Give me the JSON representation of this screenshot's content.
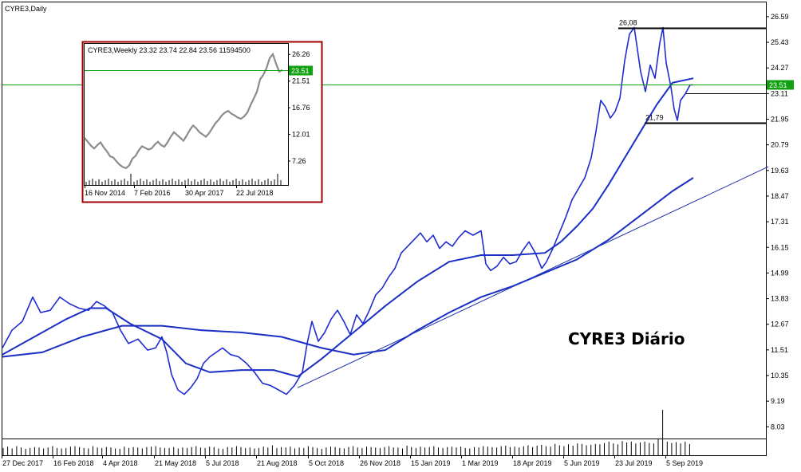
{
  "chart_data": [
    {
      "type": "line",
      "title": "CYRE3,Daily",
      "annotation": "CYRE3 Diário",
      "current_price": "23.51",
      "y_ticks": [
        "26.59",
        "25.43",
        "24.27",
        "23.11",
        "21.95",
        "20.79",
        "19.63",
        "18.47",
        "17.31",
        "16.15",
        "14.99",
        "13.83",
        "12.67",
        "11.51",
        "10.35",
        "9.19",
        "8.03"
      ],
      "x_ticks": [
        "27 Dec 2017",
        "16 Feb 2018",
        "4 Apr 2018",
        "21 May 2018",
        "5 Jul 2018",
        "21 Aug 2018",
        "5 Oct 2018",
        "26 Nov 2018",
        "15 Jan 2019",
        "1 Mar 2019",
        "18 Apr 2019",
        "5 Jun 2019",
        "23 Jul 2019",
        "5 Sep 2019"
      ],
      "levels": [
        {
          "label": "26,08",
          "value": 26.08
        },
        {
          "label": "21,79",
          "value": 21.79
        },
        {
          "label": "",
          "value": 23.11
        }
      ],
      "ylim": [
        7.5,
        27.2
      ],
      "price": [
        [
          0,
          11.6
        ],
        [
          12,
          12.4
        ],
        [
          25,
          12.8
        ],
        [
          38,
          13.9
        ],
        [
          48,
          13.2
        ],
        [
          60,
          13.3
        ],
        [
          72,
          13.9
        ],
        [
          84,
          13.6
        ],
        [
          96,
          13.4
        ],
        [
          108,
          13.3
        ],
        [
          118,
          13.7
        ],
        [
          128,
          13.5
        ],
        [
          138,
          13.2
        ],
        [
          148,
          12.4
        ],
        [
          158,
          11.8
        ],
        [
          170,
          12.0
        ],
        [
          182,
          11.5
        ],
        [
          192,
          11.6
        ],
        [
          200,
          12.1
        ],
        [
          206,
          11.4
        ],
        [
          212,
          10.4
        ],
        [
          220,
          9.7
        ],
        [
          228,
          9.5
        ],
        [
          236,
          9.8
        ],
        [
          244,
          10.2
        ],
        [
          252,
          10.9
        ],
        [
          260,
          11.2
        ],
        [
          268,
          11.4
        ],
        [
          276,
          11.6
        ],
        [
          286,
          11.3
        ],
        [
          296,
          11.2
        ],
        [
          306,
          10.9
        ],
        [
          316,
          10.5
        ],
        [
          326,
          10.0
        ],
        [
          336,
          9.9
        ],
        [
          346,
          9.7
        ],
        [
          356,
          9.5
        ],
        [
          366,
          9.9
        ],
        [
          376,
          10.5
        ],
        [
          382,
          11.8
        ],
        [
          388,
          12.8
        ],
        [
          396,
          11.9
        ],
        [
          404,
          12.3
        ],
        [
          412,
          12.9
        ],
        [
          420,
          13.3
        ],
        [
          428,
          12.8
        ],
        [
          436,
          12.2
        ],
        [
          444,
          13.1
        ],
        [
          452,
          12.7
        ],
        [
          460,
          13.3
        ],
        [
          468,
          14.0
        ],
        [
          476,
          14.3
        ],
        [
          484,
          14.8
        ],
        [
          492,
          15.2
        ],
        [
          500,
          15.9
        ],
        [
          508,
          16.2
        ],
        [
          516,
          16.5
        ],
        [
          524,
          16.8
        ],
        [
          532,
          16.4
        ],
        [
          540,
          16.7
        ],
        [
          548,
          16.1
        ],
        [
          556,
          16.4
        ],
        [
          564,
          16.2
        ],
        [
          572,
          16.6
        ],
        [
          580,
          16.9
        ],
        [
          590,
          16.7
        ],
        [
          600,
          16.9
        ],
        [
          606,
          15.4
        ],
        [
          612,
          15.1
        ],
        [
          620,
          15.3
        ],
        [
          628,
          15.7
        ],
        [
          636,
          15.4
        ],
        [
          644,
          15.5
        ],
        [
          652,
          16.0
        ],
        [
          660,
          16.4
        ],
        [
          668,
          15.9
        ],
        [
          676,
          15.2
        ],
        [
          682,
          15.5
        ],
        [
          690,
          16.1
        ],
        [
          698,
          16.8
        ],
        [
          706,
          17.5
        ],
        [
          714,
          18.3
        ],
        [
          722,
          18.8
        ],
        [
          730,
          19.3
        ],
        [
          738,
          20.2
        ],
        [
          744,
          21.4
        ],
        [
          750,
          22.8
        ],
        [
          756,
          22.5
        ],
        [
          762,
          22.0
        ],
        [
          768,
          22.3
        ],
        [
          774,
          22.9
        ],
        [
          780,
          24.6
        ],
        [
          786,
          25.8
        ],
        [
          792,
          26.1
        ],
        [
          796,
          25.1
        ],
        [
          800,
          24.1
        ],
        [
          806,
          23.2
        ],
        [
          812,
          24.4
        ],
        [
          818,
          23.8
        ],
        [
          824,
          25.4
        ],
        [
          828,
          26.1
        ],
        [
          832,
          24.5
        ],
        [
          838,
          23.4
        ],
        [
          842,
          22.4
        ],
        [
          846,
          21.9
        ],
        [
          850,
          22.8
        ],
        [
          856,
          23.1
        ],
        [
          862,
          23.5
        ],
        [
          866,
          23.5
        ]
      ],
      "ma_fast": [
        [
          0,
          11.3
        ],
        [
          40,
          12.1
        ],
        [
          80,
          12.9
        ],
        [
          110,
          13.4
        ],
        [
          130,
          13.4
        ],
        [
          160,
          12.7
        ],
        [
          200,
          12.0
        ],
        [
          230,
          10.9
        ],
        [
          260,
          10.5
        ],
        [
          300,
          10.6
        ],
        [
          340,
          10.6
        ],
        [
          370,
          10.3
        ],
        [
          400,
          11.1
        ],
        [
          440,
          12.3
        ],
        [
          480,
          13.5
        ],
        [
          520,
          14.6
        ],
        [
          560,
          15.5
        ],
        [
          600,
          15.8
        ],
        [
          640,
          15.8
        ],
        [
          680,
          15.9
        ],
        [
          700,
          16.4
        ],
        [
          720,
          17.1
        ],
        [
          740,
          17.9
        ],
        [
          760,
          19.0
        ],
        [
          780,
          20.2
        ],
        [
          800,
          21.4
        ],
        [
          820,
          22.6
        ],
        [
          840,
          23.6
        ],
        [
          866,
          23.8
        ]
      ],
      "ma_slow": [
        [
          0,
          11.2
        ],
        [
          50,
          11.4
        ],
        [
          100,
          12.1
        ],
        [
          150,
          12.6
        ],
        [
          200,
          12.6
        ],
        [
          250,
          12.4
        ],
        [
          300,
          12.3
        ],
        [
          350,
          12.1
        ],
        [
          400,
          11.6
        ],
        [
          440,
          11.3
        ],
        [
          480,
          11.5
        ],
        [
          520,
          12.4
        ],
        [
          560,
          13.2
        ],
        [
          600,
          13.9
        ],
        [
          640,
          14.4
        ],
        [
          680,
          15.0
        ],
        [
          720,
          15.6
        ],
        [
          760,
          16.5
        ],
        [
          800,
          17.6
        ],
        [
          840,
          18.7
        ],
        [
          866,
          19.3
        ]
      ],
      "trendline": [
        [
          370,
          9.8
        ],
        [
          960,
          19.8
        ]
      ],
      "volume": [
        0.16,
        0.19,
        0.15,
        0.2,
        0.17,
        0.14,
        0.16,
        0.18,
        0.17,
        0.15,
        0.17,
        0.2,
        0.16,
        0.15,
        0.16,
        0.19,
        0.2,
        0.18,
        0.16,
        0.15,
        0.2,
        0.17,
        0.16,
        0.18,
        0.17,
        0.15,
        0.14,
        0.19,
        0.16,
        0.18,
        0.17,
        0.15,
        0.18,
        0.19,
        0.2,
        0.17,
        0.16,
        0.16,
        0.18,
        0.15,
        0.17,
        0.16,
        0.18,
        0.2,
        0.17,
        0.16,
        0.19,
        0.18,
        0.15,
        0.14,
        0.18,
        0.17,
        0.2,
        0.18,
        0.16,
        0.17,
        0.15,
        0.16,
        0.19,
        0.17,
        0.22,
        0.16,
        0.18,
        0.17,
        0.19,
        0.15,
        0.17,
        0.16,
        0.2,
        0.18,
        0.16,
        0.14,
        0.17,
        0.19,
        0.18,
        0.16,
        0.15,
        0.18,
        0.2,
        0.17,
        0.16,
        0.19,
        0.18,
        0.17,
        0.16,
        0.18,
        0.2,
        0.17,
        0.17,
        0.15,
        0.21,
        0.18,
        0.16,
        0.19,
        0.17,
        0.18,
        0.2,
        0.17,
        0.16,
        0.18,
        0.19,
        0.17,
        0.19,
        0.16,
        0.15,
        0.18,
        0.17,
        0.2,
        0.19,
        0.18,
        0.17,
        0.2,
        0.21,
        0.18,
        0.19,
        0.17,
        0.2,
        0.22,
        0.18,
        0.21,
        0.23,
        0.2,
        0.19,
        0.25,
        0.22,
        0.2,
        0.24,
        0.21,
        0.26,
        0.25,
        0.22,
        0.23,
        0.25,
        0.24,
        0.27,
        0.3,
        0.26,
        0.24,
        0.31,
        0.28,
        0.3,
        0.26,
        0.28,
        0.3,
        0.27,
        0.26,
        0.35,
        1.0,
        0.3,
        0.27,
        0.29,
        0.26,
        0.3,
        0.25
      ],
      "inset": {
        "title": "CYRE3,Weekly  23.32 23.74 22.84 23.56  11594500",
        "current_price": "23.51",
        "y_ticks": [
          "26.26",
          "21.51",
          "16.76",
          "12.01",
          "7.26"
        ],
        "x_ticks": [
          "16 Nov 2014",
          "7 Feb 2016",
          "30 Apr 2017",
          "22 Jul 2018"
        ],
        "ylim": [
          3.0,
          28.0
        ],
        "price": [
          [
            0,
            11.4
          ],
          [
            4,
            10.7
          ],
          [
            8,
            10.0
          ],
          [
            12,
            9.5
          ],
          [
            16,
            10.1
          ],
          [
            20,
            10.6
          ],
          [
            24,
            9.7
          ],
          [
            28,
            9.0
          ],
          [
            32,
            8.1
          ],
          [
            36,
            7.9
          ],
          [
            40,
            7.2
          ],
          [
            44,
            6.6
          ],
          [
            48,
            6.2
          ],
          [
            52,
            6.0
          ],
          [
            56,
            6.5
          ],
          [
            60,
            7.7
          ],
          [
            64,
            8.2
          ],
          [
            68,
            9.2
          ],
          [
            72,
            9.9
          ],
          [
            76,
            9.6
          ],
          [
            80,
            9.3
          ],
          [
            84,
            9.5
          ],
          [
            88,
            10.2
          ],
          [
            92,
            10.7
          ],
          [
            96,
            10.1
          ],
          [
            100,
            9.8
          ],
          [
            104,
            10.6
          ],
          [
            108,
            11.6
          ],
          [
            112,
            12.4
          ],
          [
            116,
            11.9
          ],
          [
            120,
            11.4
          ],
          [
            124,
            10.9
          ],
          [
            128,
            11.8
          ],
          [
            132,
            12.8
          ],
          [
            136,
            13.6
          ],
          [
            140,
            13.1
          ],
          [
            144,
            12.4
          ],
          [
            148,
            12.0
          ],
          [
            152,
            11.6
          ],
          [
            156,
            12.2
          ],
          [
            160,
            13.1
          ],
          [
            164,
            14.0
          ],
          [
            168,
            14.6
          ],
          [
            172,
            15.4
          ],
          [
            176,
            15.9
          ],
          [
            180,
            16.2
          ],
          [
            184,
            15.7
          ],
          [
            188,
            15.4
          ],
          [
            192,
            15.0
          ],
          [
            196,
            14.8
          ],
          [
            200,
            15.2
          ],
          [
            204,
            15.9
          ],
          [
            208,
            17.2
          ],
          [
            212,
            18.4
          ],
          [
            216,
            19.6
          ],
          [
            220,
            21.8
          ],
          [
            224,
            22.6
          ],
          [
            228,
            23.8
          ],
          [
            232,
            25.6
          ],
          [
            236,
            26.3
          ],
          [
            240,
            24.6
          ],
          [
            244,
            23.2
          ],
          [
            248,
            23.5
          ]
        ]
      }
    }
  ]
}
